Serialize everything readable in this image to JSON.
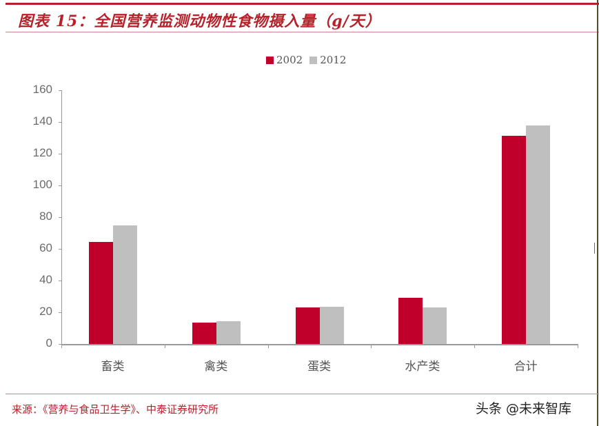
{
  "header": {
    "title": "图表 15：全国营养监测动物性食物摄入量（g/天）"
  },
  "footer": {
    "source": "来源：《营养与食品卫生学》、中泰证券研究所",
    "watermark": "头条 @未来智库"
  },
  "colors": {
    "series_2002": "#c0002a",
    "series_2012": "#bfbfbf",
    "accent": "#b8202a"
  },
  "chart_data": {
    "type": "bar",
    "title": "全国营养监测动物性食物摄入量（g/天）",
    "xlabel": "",
    "ylabel": "",
    "categories": [
      "畜类",
      "禽类",
      "蛋类",
      "水产类",
      "合计"
    ],
    "series": [
      {
        "name": "2002",
        "color": "#c0002a",
        "values": [
          64.3,
          13.5,
          23.0,
          29.0,
          131.3
        ]
      },
      {
        "name": "2012",
        "color": "#bfbfbf",
        "values": [
          74.8,
          14.3,
          23.5,
          23.0,
          137.8
        ]
      }
    ],
    "ylim": [
      0,
      160
    ],
    "yticks": [
      0,
      20,
      40,
      60,
      80,
      100,
      120,
      140,
      160
    ],
    "grid": false,
    "legend_position": "top-center"
  }
}
